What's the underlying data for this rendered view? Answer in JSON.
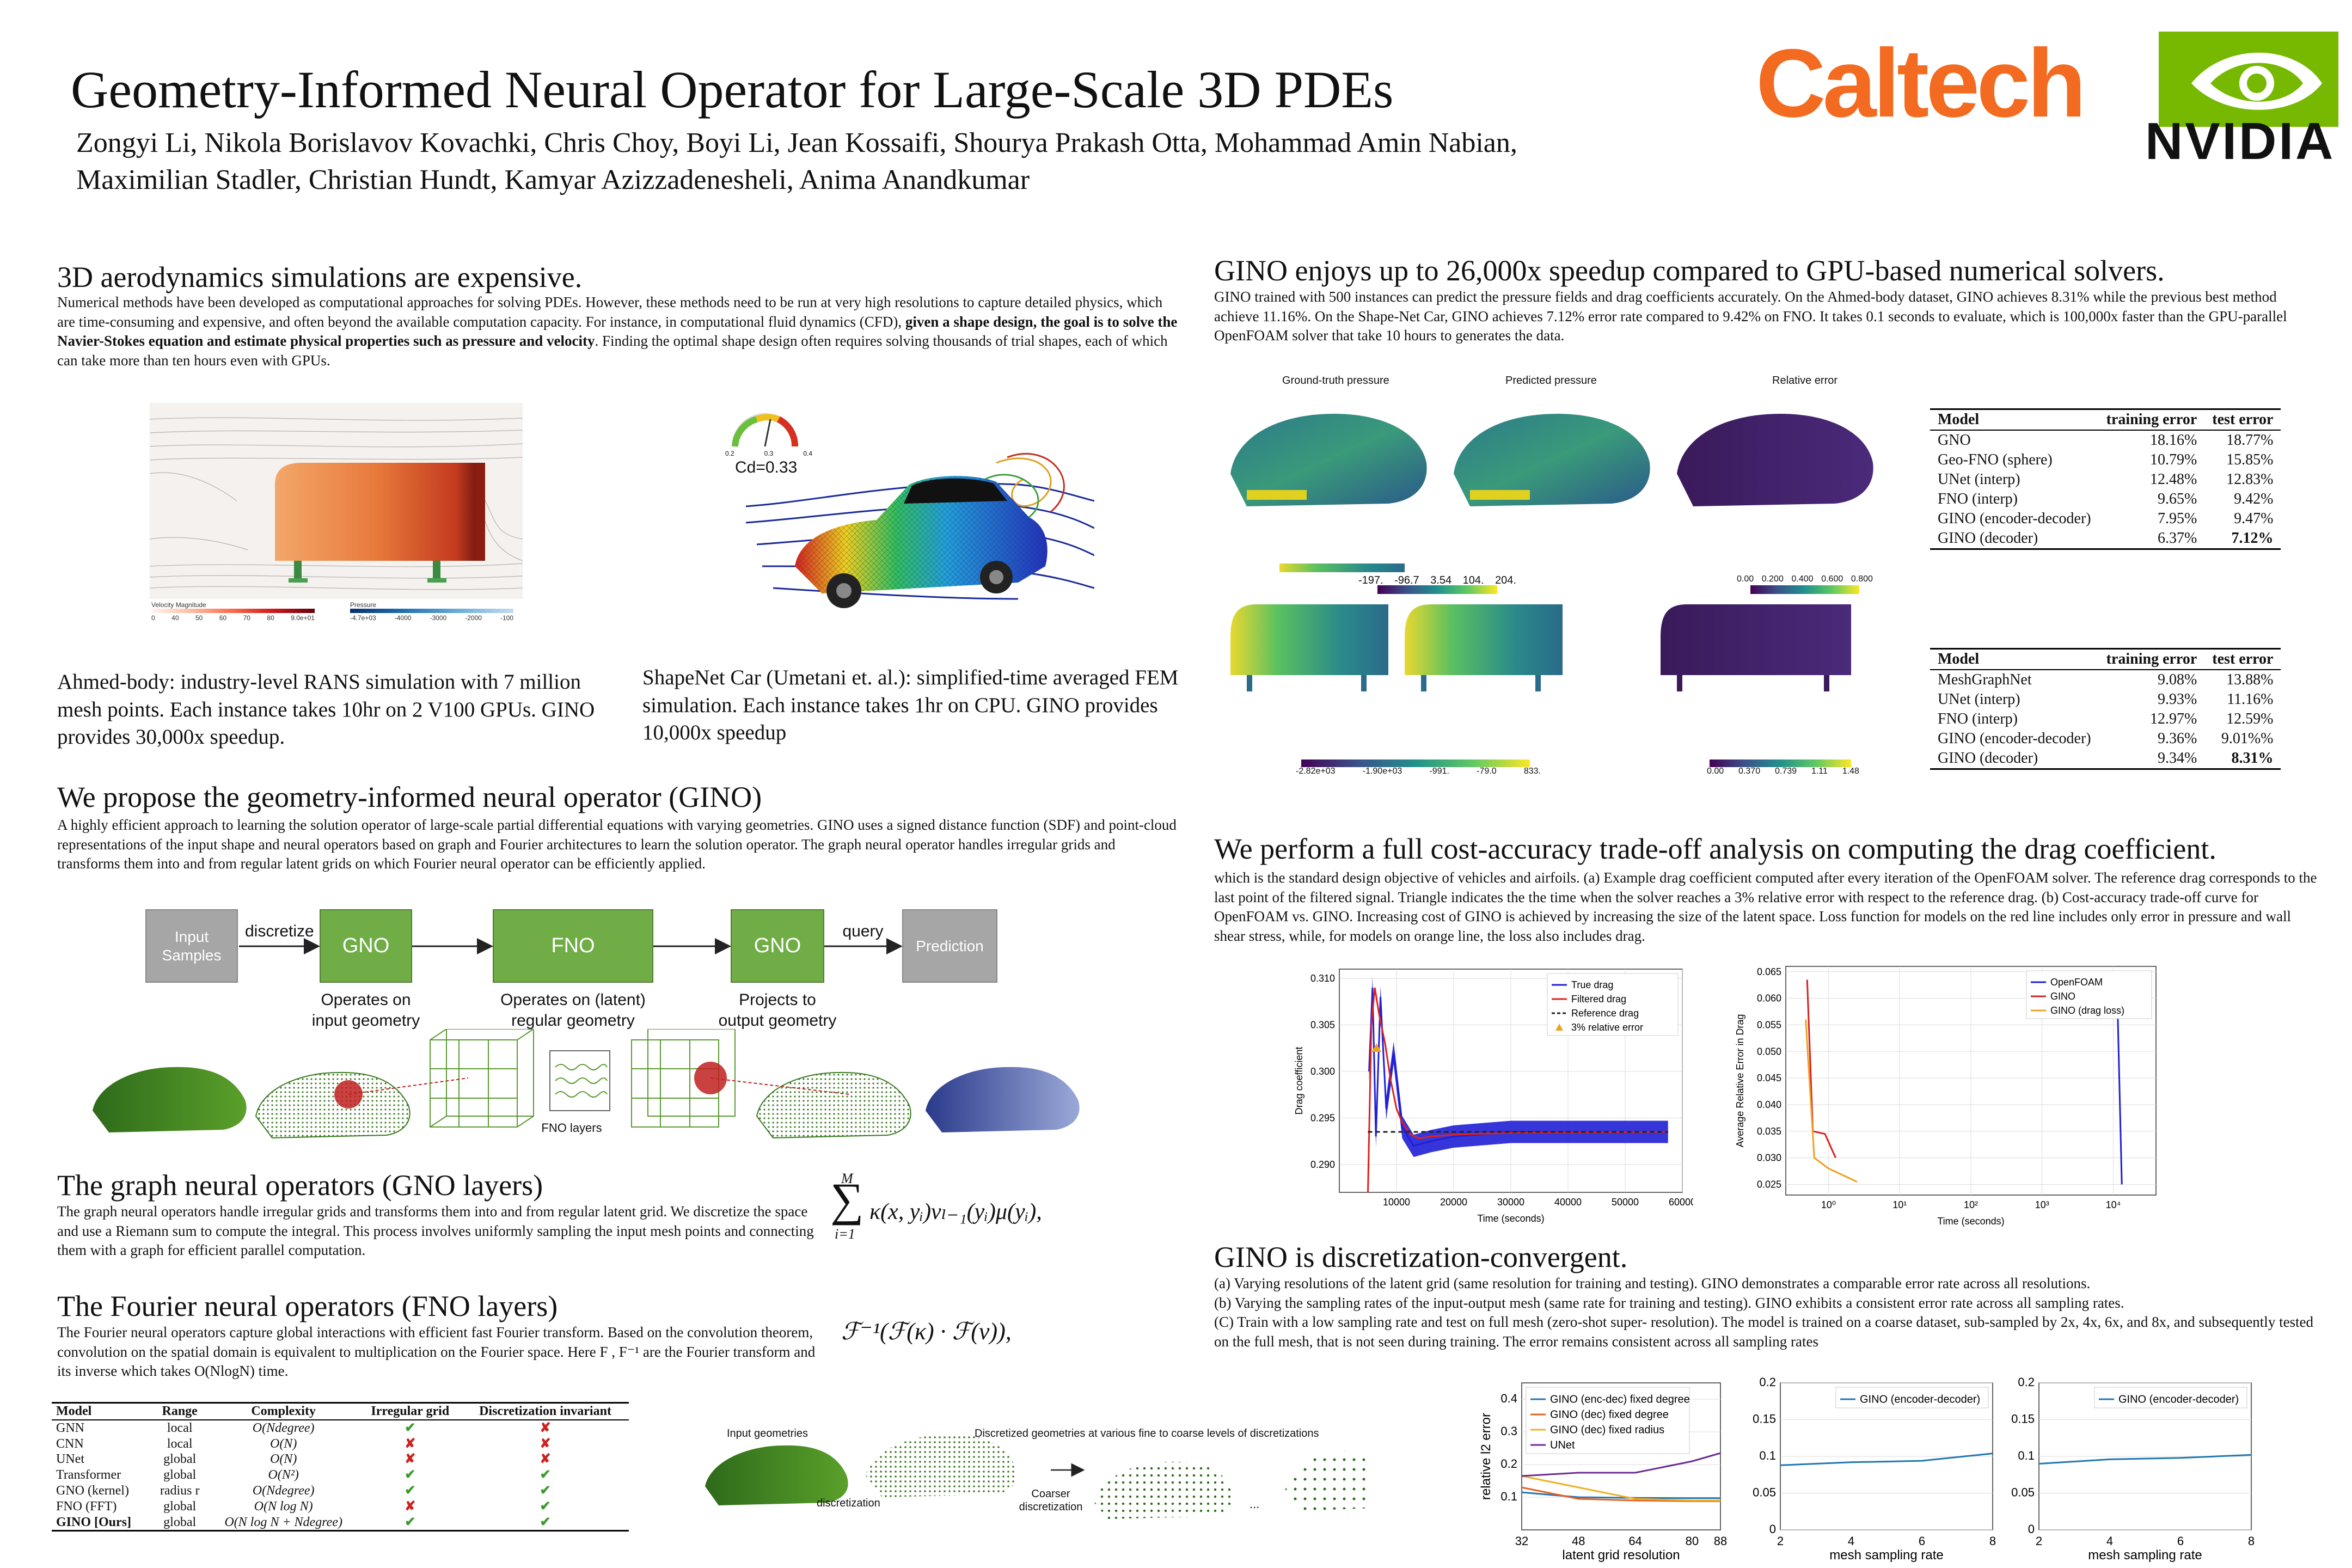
{
  "header": {
    "title": "Geometry-Informed Neural Operator for Large-Scale 3D PDEs",
    "authors_line1": "Zongyi Li, Nikola Borislavov Kovachki, Chris Choy, Boyi Li, Jean Kossaifi, Shourya Prakash Otta, Mohammad Amin Nabian,",
    "authors_line2": "Maximilian Stadler, Christian Hundt, Kamyar Azizzadenesheli, Anima Anandkumar",
    "logo_caltech": "Caltech",
    "logo_nvidia": "NVIDIA"
  },
  "colors": {
    "caltech": "#f26b21",
    "nvidia": "#76b900",
    "gino": "#70ad47",
    "input_box": "#a6a6a6",
    "pred_box": "#a6a6a6"
  },
  "s1": {
    "title": "3D aerodynamics simulations are expensive.",
    "body_a": "Numerical methods have been developed as computational approaches for solving PDEs. However, these methods need to be run at very high resolutions to capture detailed physics, which are time-consuming and expensive, and often beyond the available computation capacity. For instance, in computational fluid dynamics (CFD), ",
    "body_bold": "given a shape design, the goal is to solve the Navier-Stokes equation and estimate physical properties such as pressure and velocity",
    "body_b": ". Finding the optimal shape design often requires solving thousands of trial shapes, each of which can take more than ten hours even with GPUs.",
    "ahmed_legend_vel": "Velocity Magnitude",
    "ahmed_legend_vel_ticks": [
      "0",
      "40",
      "50",
      "60",
      "70",
      "80",
      "9.0e+01"
    ],
    "ahmed_legend_p": "Pressure",
    "ahmed_legend_p_ticks": [
      "-4.7e+03",
      "-4000",
      "-3000",
      "-2000",
      "-100"
    ],
    "cd_label": "Cd=0.33",
    "gauge_ticks": [
      "0.2",
      "0.3",
      "0.4"
    ],
    "ahmed_caption": "Ahmed-body: industry-level RANS simulation with 7 million mesh points. Each instance takes 10hr on 2 V100 GPUs. GINO provides 30,000x speedup.",
    "shapenet_caption": "ShapeNet Car (Umetani et. al.): simplified-time averaged FEM simulation. Each instance takes 1hr on CPU. GINO provides 10,000x speedup"
  },
  "s2": {
    "title": "We propose the geometry-informed neural operator (GINO)",
    "body": "A highly efficient approach to learning the solution operator of large-scale partial differential equations with varying geometries. GINO uses a signed distance function (SDF) and point-cloud representations of the input shape and neural operators based on graph and Fourier architectures to learn the solution operator. The graph neural operator handles irregular grids and transforms them into and from regular latent grids on which Fourier neural operator can be efficiently applied.",
    "flow": {
      "input": "Input Samples",
      "discretize": "discretize",
      "gno1": "GNO",
      "fno": "FNO",
      "gno2": "GNO",
      "query": "query",
      "prediction": "Prediction",
      "gno1_desc": "Operates on input geometry",
      "fno_desc": "Operates on (latent) regular geometry",
      "gno2_desc": "Projects to output geometry",
      "fno_layers": "FNO layers"
    }
  },
  "s3": {
    "title": "The graph neural operators (GNO layers)",
    "body": "The graph neural operators  handle irregular grids and transforms them into and from regular latent grid. We discretize the space and use a Riemann sum to compute the integral. This process involves uniformly sampling the input mesh points and connecting them with a graph for efficient parallel computation.",
    "eq_top": "M",
    "eq_bottom": "i=1",
    "eq_body": "κ(x, yᵢ)vₗ₋₁(yᵢ)μ(yᵢ),"
  },
  "s4": {
    "title": "The Fourier neural operators (FNO layers)",
    "body": "The Fourier neural operators capture global interactions with efficient fast Fourier transform. Based on the convolution theorem, convolution on the spatial domain is equivalent to multiplication on the Fourier space. Here F , F⁻¹ are the Fourier transform and its inverse which takes O(NlogN) time.",
    "eq": "ℱ⁻¹(ℱ(κ) · ℱ(v)),",
    "table_head": [
      "Model",
      "Range",
      "Complexity",
      "Irregular grid",
      "Discretization invariant"
    ],
    "table_rows": [
      [
        "GNN",
        "local",
        "O(Ndegree)",
        "✔",
        "✘"
      ],
      [
        "CNN",
        "local",
        "O(N)",
        "✘",
        "✘"
      ],
      [
        "UNet",
        "global",
        "O(N)",
        "✘",
        "✘"
      ],
      [
        "Transformer",
        "global",
        "O(N²)",
        "✔",
        "✔"
      ],
      [
        "GNO (kernel)",
        "radius r",
        "O(Ndegree)",
        "✔",
        "✔"
      ],
      [
        "FNO (FFT)",
        "global",
        "O(N log N)",
        "✘",
        "✔"
      ],
      [
        "GINO [Ours]",
        "global",
        "O(N log N + Ndegree)",
        "✔",
        "✔"
      ]
    ]
  },
  "s5": {
    "title": "GINO enjoys up to 26,000x speedup compared to GPU-based numerical solvers.",
    "body": "GINO trained with 500 instances can predict the pressure fields and drag coefficients accurately. On the Ahmed-body dataset, GINO achieves 8.31% while the previous best method achieve 11.16%. On the Shape-Net Car, GINO achieves 7.12% error rate compared to 9.42% on FNO. It takes 0.1 seconds to evaluate, which is 100,000x faster than the GPU-parallel OpenFOAM solver that take 10 hours to generates the data.",
    "col_gt": "Ground-truth pressure",
    "col_pred": "Predicted pressure",
    "col_err": "Relative error",
    "cbar1_ticks": [
      "-197.",
      "-96.7",
      "3.54",
      "104.",
      "204."
    ],
    "cbar2_ticks": [
      "0.00",
      "0.200",
      "0.400",
      "0.600",
      "0.800"
    ],
    "cbar3_ticks": [
      "-2.82e+03",
      "-1.90e+03",
      "-991.",
      "-79.0",
      "833."
    ],
    "cbar4_ticks": [
      "0.00",
      "0.370",
      "0.739",
      "1.11",
      "1.48"
    ],
    "t1_head": [
      "Model",
      "training error",
      "test error"
    ],
    "t1_rows": [
      [
        "GNO",
        "18.16%",
        "18.77%"
      ],
      [
        "Geo-FNO (sphere)",
        "10.79%",
        "15.85%"
      ],
      [
        "UNet (interp)",
        "12.48%",
        "12.83%"
      ],
      [
        "FNO (interp)",
        "9.65%",
        "9.42%"
      ],
      [
        "GINO (encoder-decoder)",
        "7.95%",
        "9.47%"
      ],
      [
        "GINO (decoder)",
        "6.37%",
        "7.12%"
      ]
    ],
    "t2_head": [
      "Model",
      "training error",
      "test error"
    ],
    "t2_rows": [
      [
        "MeshGraphNet",
        "9.08%",
        "13.88%"
      ],
      [
        "UNet (interp)",
        "9.93%",
        "11.16%"
      ],
      [
        "FNO (interp)",
        "12.97%",
        "12.59%"
      ],
      [
        "GINO (encoder-decoder)",
        "9.36%",
        "9.01%%"
      ],
      [
        "GINO (decoder)",
        "9.34%",
        "8.31%"
      ]
    ]
  },
  "s6": {
    "title": "We perform a full cost-accuracy trade-off analysis on computing the drag coefficient.",
    "body": "which is the standard design objective of vehicles and airfoils. (a) Example drag coefficient computed after every iteration of the OpenFOAM solver. The reference drag corresponds to the last point of the filtered signal. Triangle indicates the the time when the solver reaches a 3% relative error with respect to the reference drag. (b) Cost-accuracy trade-off curve for OpenFOAM vs. GINO. Increasing cost of GINO is achieved by increasing the size of the latent space. Loss function for models on the red line includes only error in pressure and wall shear stress, while, for models on orange line, the loss also includes drag."
  },
  "s7": {
    "title": "GINO is discretization-convergent.",
    "body_a": "(a)  Varying resolutions of the latent grid (same resolution for training and testing). GINO demonstrates a comparable error rate across all resolutions.",
    "body_b": "(b) Varying the sampling rates of the input-output mesh (same rate for training and testing). GINO exhibits a consistent error rate across all sampling rates.",
    "body_c": "(C) Train with a low sampling rate and test on full mesh (zero-shot super- resolution). The model is trained on a coarse dataset, sub-sampled by 2x, 4x, 6x, and 8x, and subsequently tested on the full mesh, that is not seen during training. The error remains consistent across all sampling rates",
    "fig_input": "Input geometries",
    "fig_disc": "Discretized geometries at various fine to coarse levels of discretizations",
    "fig_discretization": "discretization",
    "fig_coarser": "Coarser discretization",
    "fig_dots": "..."
  },
  "chart_data": [
    {
      "type": "line",
      "xlabel": "Time (seconds)",
      "ylabel": "Drag coefficient",
      "xlim": [
        0,
        60000
      ],
      "ylim": [
        0.287,
        0.311
      ],
      "xticks": [
        "10000",
        "20000",
        "30000",
        "40000",
        "50000",
        "60000"
      ],
      "yticks": [
        "0.290",
        "0.295",
        "0.300",
        "0.305",
        "0.310"
      ],
      "legend": "top-right",
      "series": [
        {
          "name": "True drag",
          "color": "#1f1fd6",
          "x": [
            5200,
            5800,
            6400,
            7200,
            8200,
            9500,
            11000,
            13000,
            16000,
            20000,
            30000,
            40000,
            50000,
            57500
          ],
          "y": [
            0.3,
            0.309,
            0.293,
            0.308,
            0.296,
            0.302,
            0.294,
            0.292,
            0.2925,
            0.293,
            0.2935,
            0.2935,
            0.2935,
            0.2935
          ],
          "band": 0.0012
        },
        {
          "name": "Filtered drag",
          "color": "#e02020",
          "x": [
            5000,
            5600,
            6200,
            7000,
            8000,
            9000,
            10000,
            11000,
            12500,
            14000,
            16000,
            20000,
            30000,
            57500
          ],
          "y": [
            0.287,
            0.305,
            0.309,
            0.306,
            0.303,
            0.299,
            0.296,
            0.2945,
            0.2932,
            0.2928,
            0.293,
            0.2932,
            0.2934,
            0.2935
          ]
        },
        {
          "name": "Reference drag",
          "color": "#222222",
          "dash": true,
          "x": [
            5000,
            57500
          ],
          "y": [
            0.2935,
            0.2935
          ]
        },
        {
          "name": "3% relative error",
          "color": "#f0a020",
          "marker": "triangle",
          "x": [
            6500
          ],
          "y": [
            0.3025
          ]
        }
      ]
    },
    {
      "type": "line",
      "xlabel": "Time (seconds)",
      "ylabel": "Average Relative Error in Drag",
      "xscale": "log",
      "xlim": [
        -0.6,
        4.6
      ],
      "ylim": [
        0.023,
        0.066
      ],
      "xticks": [
        "10⁰",
        "10¹",
        "10²",
        "10³",
        "10⁴"
      ],
      "yticks": [
        "0.025",
        "0.030",
        "0.035",
        "0.040",
        "0.045",
        "0.050",
        "0.055",
        "0.060",
        "0.065"
      ],
      "legend": "top-right",
      "series": [
        {
          "name": "OpenFOAM",
          "color": "#1f1fd6",
          "x": [
            4.05,
            4.12
          ],
          "y": [
            0.064,
            0.025
          ]
        },
        {
          "name": "GINO",
          "color": "#d62020",
          "x": [
            -0.3,
            -0.22,
            -0.05,
            0.1
          ],
          "y": [
            0.0635,
            0.035,
            0.0345,
            0.03
          ]
        },
        {
          "name": "GINO (drag loss)",
          "color": "#f0a020",
          "x": [
            -0.32,
            -0.2,
            0.0,
            0.4
          ],
          "y": [
            0.056,
            0.03,
            0.028,
            0.0255
          ]
        }
      ]
    },
    {
      "type": "line",
      "xlabel": "latent grid resolution",
      "ylabel": "relative l2 error",
      "categories": [
        "32",
        "48",
        "64",
        "80",
        "88"
      ],
      "xvals": [
        32,
        48,
        64,
        80,
        88
      ],
      "xlim": [
        32,
        88
      ],
      "ylim": [
        0,
        0.45
      ],
      "yticks": [
        "0.1",
        "0.2",
        "0.3",
        "0.4"
      ],
      "legend": "top-left",
      "series": [
        {
          "name": "GINO (enc-dec) fixed degree",
          "color": "#1f77b4",
          "y": [
            0.115,
            0.1,
            0.098,
            0.097,
            0.097
          ]
        },
        {
          "name": "GINO (dec) fixed degree",
          "color": "#e8601c",
          "y": [
            0.13,
            0.095,
            0.09,
            0.088,
            0.088
          ]
        },
        {
          "name": "GINO (dec) fixed radius",
          "color": "#f0b020",
          "y": [
            0.165,
            0.13,
            0.095,
            0.09,
            0.09
          ]
        },
        {
          "name": "UNet",
          "color": "#6a2c91",
          "y": [
            0.165,
            0.175,
            0.175,
            0.21,
            0.235
          ]
        }
      ]
    },
    {
      "type": "line",
      "xlabel": "mesh sampling rate",
      "ylabel": "",
      "categories": [
        "2",
        "4",
        "6",
        "8"
      ],
      "xvals": [
        2,
        4,
        6,
        8
      ],
      "xlim": [
        2,
        8
      ],
      "ylim": [
        0,
        0.2
      ],
      "yticks": [
        "0",
        "0.05",
        "0.1",
        "0.15",
        "0.2"
      ],
      "legend": "top-right",
      "series": [
        {
          "name": "GINO (encoder-decoder)",
          "color": "#1f77b4",
          "y": [
            0.088,
            0.092,
            0.094,
            0.104
          ]
        }
      ]
    },
    {
      "type": "line",
      "xlabel": "mesh sampling rate",
      "ylabel": "",
      "categories": [
        "2",
        "4",
        "6",
        "8"
      ],
      "xvals": [
        2,
        4,
        6,
        8
      ],
      "xlim": [
        2,
        8
      ],
      "ylim": [
        0,
        0.2
      ],
      "yticks": [
        "0",
        "0.05",
        "0.1",
        "0.15",
        "0.2"
      ],
      "legend": "top-right",
      "series": [
        {
          "name": "GINO (encoder-decoder)",
          "color": "#1f77b4",
          "y": [
            0.09,
            0.096,
            0.098,
            0.102
          ]
        }
      ]
    }
  ]
}
